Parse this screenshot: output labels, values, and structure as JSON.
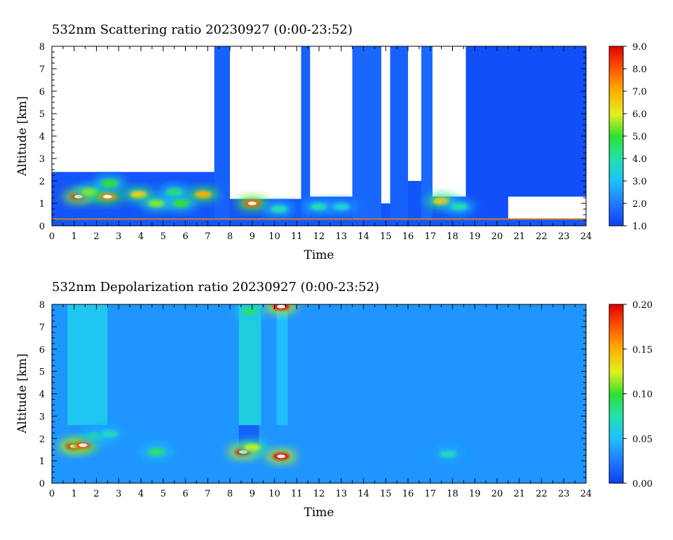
{
  "chart_data": [
    {
      "type": "heatmap",
      "title": "532nm Scattering ratio  20230927 (0:00-23:52)",
      "xlabel": "Time",
      "ylabel": "Altitude [km]",
      "xlim": [
        0,
        24
      ],
      "ylim": [
        0,
        8
      ],
      "x_ticks": [
        "0",
        "1",
        "2",
        "3",
        "4",
        "5",
        "6",
        "7",
        "8",
        "9",
        "10",
        "11",
        "12",
        "13",
        "14",
        "15",
        "16",
        "17",
        "18",
        "19",
        "20",
        "21",
        "22",
        "23",
        "24"
      ],
      "y_ticks": [
        "0",
        "1",
        "2",
        "3",
        "4",
        "5",
        "6",
        "7",
        "8"
      ],
      "colorbar": {
        "range": [
          1.0,
          9.0
        ],
        "ticks": [
          "1.0",
          "2.0",
          "3.0",
          "4.0",
          "5.0",
          "6.0",
          "7.0",
          "8.0",
          "9.0"
        ],
        "colors": [
          "#0b3ef5",
          "#1f78ff",
          "#1fc0ff",
          "#20e0b0",
          "#30e030",
          "#e0f020",
          "#ffb000",
          "#ff5a00",
          "#e00000"
        ]
      },
      "regions": [
        {
          "name": "no-data",
          "x": [
            0,
            7.3
          ],
          "y": [
            2.4,
            8
          ],
          "value": null
        },
        {
          "name": "cloud-column",
          "x": [
            7.3,
            8.0
          ],
          "y": [
            0.3,
            8
          ],
          "value": 1.6
        },
        {
          "name": "no-data",
          "x": [
            8.0,
            11.2
          ],
          "y": [
            1.2,
            8
          ],
          "value": null
        },
        {
          "name": "cloud-column",
          "x": [
            11.2,
            11.6
          ],
          "y": [
            0.3,
            8
          ],
          "value": 1.6
        },
        {
          "name": "no-data",
          "x": [
            11.6,
            13.5
          ],
          "y": [
            1.3,
            8
          ],
          "value": null
        },
        {
          "name": "cloud-column",
          "x": [
            13.5,
            14.8
          ],
          "y": [
            0.3,
            8
          ],
          "value": 1.7
        },
        {
          "name": "no-data",
          "x": [
            14.8,
            15.2
          ],
          "y": [
            1.0,
            8
          ],
          "value": null
        },
        {
          "name": "cloud-column",
          "x": [
            15.2,
            16.0
          ],
          "y": [
            0.3,
            8
          ],
          "value": 1.6
        },
        {
          "name": "no-data",
          "x": [
            16.0,
            16.6
          ],
          "y": [
            2.0,
            8
          ],
          "value": null
        },
        {
          "name": "cloud-column",
          "x": [
            16.6,
            17.1
          ],
          "y": [
            0.3,
            8
          ],
          "value": 1.7
        },
        {
          "name": "no-data",
          "x": [
            17.1,
            18.6
          ],
          "y": [
            1.3,
            8
          ],
          "value": null
        },
        {
          "name": "background",
          "x": [
            18.6,
            24
          ],
          "y": [
            0.3,
            8
          ],
          "value": 1.3
        },
        {
          "name": "no-data",
          "x": [
            20.5,
            24
          ],
          "y": [
            0.3,
            1.3
          ],
          "value": null
        }
      ],
      "features": [
        {
          "x": 1.2,
          "y": 1.3,
          "value": 8.5
        },
        {
          "x": 1.7,
          "y": 1.5,
          "value": 5.5
        },
        {
          "x": 2.5,
          "y": 1.3,
          "value": 7.5
        },
        {
          "x": 2.6,
          "y": 1.9,
          "value": 5.0
        },
        {
          "x": 3.9,
          "y": 1.4,
          "value": 6.5
        },
        {
          "x": 4.7,
          "y": 1.0,
          "value": 5.5
        },
        {
          "x": 5.5,
          "y": 1.5,
          "value": 4.5
        },
        {
          "x": 5.8,
          "y": 1.0,
          "value": 5.0
        },
        {
          "x": 6.8,
          "y": 1.4,
          "value": 7.0
        },
        {
          "x": 9.0,
          "y": 1.0,
          "value": 8.0
        },
        {
          "x": 10.2,
          "y": 0.75,
          "value": 4.0
        },
        {
          "x": 12.0,
          "y": 0.85,
          "value": 4.0
        },
        {
          "x": 13.0,
          "y": 0.85,
          "value": 3.5
        },
        {
          "x": 17.5,
          "y": 1.1,
          "value": 6.5
        },
        {
          "x": 18.3,
          "y": 0.85,
          "value": 4.0
        }
      ]
    },
    {
      "type": "heatmap",
      "title": "532nm Depolarization ratio  20230927 (0:00-23:52)",
      "xlabel": "Time",
      "ylabel": "Altitude [km]",
      "xlim": [
        0,
        24
      ],
      "ylim": [
        0,
        8
      ],
      "x_ticks": [
        "0",
        "1",
        "2",
        "3",
        "4",
        "5",
        "6",
        "7",
        "8",
        "9",
        "10",
        "11",
        "12",
        "13",
        "14",
        "15",
        "16",
        "17",
        "18",
        "19",
        "20",
        "21",
        "22",
        "23",
        "24"
      ],
      "y_ticks": [
        "0",
        "1",
        "2",
        "3",
        "4",
        "5",
        "6",
        "7",
        "8"
      ],
      "colorbar": {
        "range": [
          0.0,
          0.2
        ],
        "ticks": [
          "0.00",
          "0.05",
          "0.10",
          "0.15",
          "0.20"
        ],
        "colors": [
          "#0b3ef5",
          "#1f78ff",
          "#1fc0ff",
          "#20e0b0",
          "#30e030",
          "#e0f020",
          "#ffb000",
          "#ff5a00",
          "#e00000"
        ]
      },
      "background_value": 0.035,
      "regions": [
        {
          "name": "elevated",
          "x": [
            0.7,
            2.5
          ],
          "y": [
            2.6,
            8
          ],
          "value": 0.055
        },
        {
          "name": "low",
          "x": [
            8.4,
            9.3
          ],
          "y": [
            1.6,
            2.6
          ],
          "value": 0.015
        },
        {
          "name": "elevated",
          "x": [
            8.4,
            9.4
          ],
          "y": [
            2.6,
            8
          ],
          "value": 0.06
        },
        {
          "name": "elevated",
          "x": [
            10.1,
            10.6
          ],
          "y": [
            2.6,
            8
          ],
          "value": 0.05
        }
      ],
      "features": [
        {
          "x": 1.0,
          "y": 1.65,
          "value": 0.2
        },
        {
          "x": 1.4,
          "y": 1.7,
          "value": 0.18
        },
        {
          "x": 2.0,
          "y": 2.1,
          "value": 0.08
        },
        {
          "x": 2.6,
          "y": 2.2,
          "value": 0.07
        },
        {
          "x": 4.7,
          "y": 1.4,
          "value": 0.09
        },
        {
          "x": 8.6,
          "y": 1.4,
          "value": 0.2
        },
        {
          "x": 9.0,
          "y": 1.6,
          "value": 0.12
        },
        {
          "x": 8.9,
          "y": 7.7,
          "value": 0.09
        },
        {
          "x": 10.3,
          "y": 7.9,
          "value": 0.2
        },
        {
          "x": 10.3,
          "y": 1.2,
          "value": 0.2
        },
        {
          "x": 17.8,
          "y": 1.3,
          "value": 0.07
        }
      ]
    }
  ]
}
